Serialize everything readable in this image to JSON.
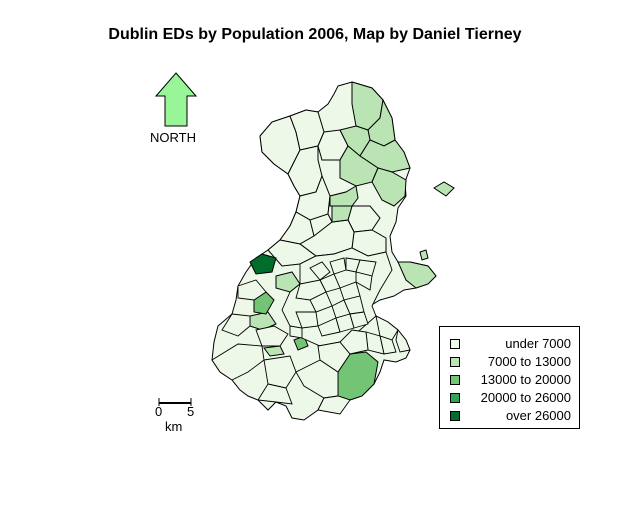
{
  "title": "Dublin EDs by Population 2006, Map by Daniel Tierney",
  "north_arrow": {
    "label": "NORTH",
    "color": "#98f598"
  },
  "legend": {
    "items": [
      {
        "label": "under 7000",
        "color": "#edf8e9"
      },
      {
        "label": "7000 to 13000",
        "color": "#bae4b3"
      },
      {
        "label": "13000 to 20000",
        "color": "#74c476"
      },
      {
        "label": "20000 to 26000",
        "color": "#31a354"
      },
      {
        "label": "over 26000",
        "color": "#006d2c"
      }
    ]
  },
  "scale_bar": {
    "min_label": "0",
    "max_label": "5",
    "unit": "km"
  }
}
